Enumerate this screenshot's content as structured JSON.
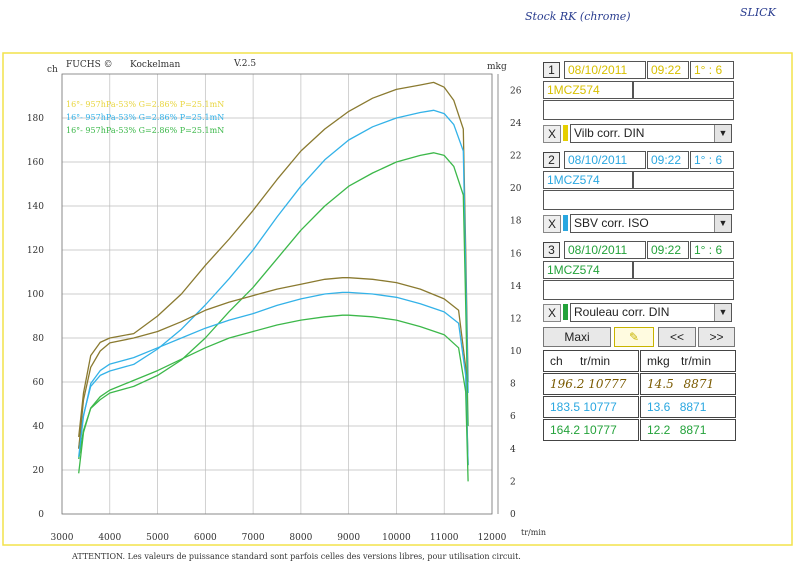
{
  "header": {
    "brand": "FUCHS ©",
    "author": "Kockelman",
    "version": "V.2.5",
    "left_unit": "ch",
    "right_unit": "mkg",
    "x_unit": "tr/min"
  },
  "handwritten": {
    "top_note": "Stock RK (chrome)",
    "top_right": "SLICK"
  },
  "footer_text": "ATTENTION. Les valeurs de puissance standard sont parfois celles des versions libres, pour utilisation circuit.",
  "legend_lines": [
    {
      "text": "16°- 957hPa-53% G=2.86% P=25.1mN",
      "color": "#e8d640"
    },
    {
      "text": "16°- 957hPa-53% G=2.86% P=25.1mN",
      "color": "#33b2e8"
    },
    {
      "text": "16°- 957hPa-53% G=2.86% P=25.1mN",
      "color": "#3cb84a"
    }
  ],
  "runs": [
    {
      "number": "1",
      "date": "08/10/2011",
      "time": "09:22",
      "ratio": "1° : 6",
      "plate": "1MCZ574",
      "correction": "Vilb corr. DIN",
      "close": "X",
      "color": "#e6cf00"
    },
    {
      "number": "2",
      "date": "08/10/2011",
      "time": "09:22",
      "ratio": "1° : 6",
      "plate": "1MCZ574",
      "correction": "SBV corr. ISO",
      "close": "X",
      "color": "#2aa7e0"
    },
    {
      "number": "3",
      "date": "08/10/2011",
      "time": "09:22",
      "ratio": "1° : 6",
      "plate": "1MCZ574",
      "correction": "Rouleau corr. DIN",
      "close": "X",
      "color": "#23a23a"
    }
  ],
  "controls": {
    "maxi": "Maxi",
    "prev": "<<",
    "next": ">>"
  },
  "results_table": {
    "headers": [
      "ch",
      "tr/min",
      "mkg",
      "tr/min"
    ],
    "rows": [
      {
        "ch": "196.2",
        "rpm1": "10777",
        "mkg": "14.5",
        "rpm2": "8871"
      },
      {
        "ch": "183.5",
        "rpm1": "10777",
        "mkg": "13.6",
        "rpm2": "8871"
      },
      {
        "ch": "164.2",
        "rpm1": "10777",
        "mkg": "12.2",
        "rpm2": "8871"
      }
    ]
  },
  "chart_data": {
    "type": "line",
    "title": "",
    "xlabel": "tr/min",
    "ylabel": "ch",
    "y2label": "mkg",
    "xlim": [
      3000,
      12000
    ],
    "ylim": [
      0,
      200
    ],
    "y2lim": [
      0,
      27
    ],
    "grid": true,
    "x_ticks": [
      3000,
      4000,
      5000,
      6000,
      7000,
      8000,
      9000,
      10000,
      11000,
      12000
    ],
    "y_ticks": [
      0,
      20,
      40,
      60,
      80,
      100,
      120,
      140,
      160,
      180
    ],
    "y2_ticks": [
      0,
      2,
      4,
      6,
      8,
      10,
      12,
      14,
      16,
      18,
      20,
      22,
      24,
      26
    ],
    "series": [
      {
        "name": "1",
        "kind": "power",
        "color": "#8a7a30",
        "x": [
          3350,
          3450,
          3600,
          3800,
          4000,
          4500,
          5000,
          5500,
          6000,
          6500,
          7000,
          7500,
          8000,
          8500,
          9000,
          9500,
          10000,
          10500,
          10777,
          11000,
          11200,
          11400,
          11450,
          11500
        ],
        "y": [
          35,
          55,
          72,
          78,
          80,
          82,
          90,
          100,
          113,
          125,
          138,
          152,
          165,
          175,
          183,
          189,
          193,
          195,
          196.2,
          194,
          188,
          175,
          120,
          60
        ]
      },
      {
        "name": "2",
        "kind": "power",
        "color": "#33b2e8",
        "x": [
          3350,
          3450,
          3600,
          3800,
          4000,
          4500,
          5000,
          5500,
          6000,
          6500,
          7000,
          7500,
          8000,
          8500,
          9000,
          9500,
          10000,
          10500,
          10777,
          11000,
          11200,
          11400,
          11450,
          11500
        ],
        "y": [
          30,
          45,
          58,
          63,
          65,
          68,
          75,
          84,
          95,
          107,
          120,
          135,
          149,
          161,
          170,
          176,
          180,
          182.5,
          183.5,
          182,
          177,
          165,
          110,
          55
        ]
      },
      {
        "name": "3",
        "kind": "power",
        "color": "#3cb84a",
        "x": [
          3350,
          3450,
          3600,
          3800,
          4000,
          4500,
          5000,
          5500,
          6000,
          6500,
          7000,
          7500,
          8000,
          8500,
          9000,
          9500,
          10000,
          10500,
          10777,
          11000,
          11200,
          11400,
          11450,
          11500
        ],
        "y": [
          25,
          38,
          48,
          52,
          55,
          58,
          63,
          70,
          80,
          92,
          103,
          116,
          129,
          140,
          149,
          155,
          160,
          163,
          164.2,
          163,
          158,
          145,
          95,
          40
        ]
      },
      {
        "name": "1",
        "kind": "torque",
        "color": "#8a7a30",
        "x": [
          3350,
          3450,
          3600,
          3800,
          4000,
          4500,
          5000,
          5500,
          6000,
          6500,
          7000,
          7500,
          8000,
          8500,
          8871,
          9000,
          9500,
          10000,
          10500,
          11000,
          11300,
          11450,
          11500
        ],
        "y": [
          4,
          7,
          9,
          10,
          10.5,
          10.8,
          11.2,
          11.8,
          12.5,
          13.0,
          13.4,
          13.8,
          14.1,
          14.4,
          14.5,
          14.5,
          14.4,
          14.2,
          13.8,
          13.2,
          12.5,
          9,
          3
        ]
      },
      {
        "name": "2",
        "kind": "torque",
        "color": "#33b2e8",
        "x": [
          3350,
          3450,
          3600,
          3800,
          4000,
          4500,
          5000,
          5500,
          6000,
          6500,
          7000,
          7500,
          8000,
          8500,
          8871,
          9000,
          9500,
          10000,
          10500,
          11000,
          11300,
          11450,
          11500
        ],
        "y": [
          3.5,
          6,
          8,
          8.8,
          9.2,
          9.6,
          10.2,
          10.8,
          11.4,
          11.9,
          12.3,
          12.8,
          13.2,
          13.5,
          13.6,
          13.6,
          13.5,
          13.3,
          12.9,
          12.4,
          11.7,
          8.5,
          3
        ]
      },
      {
        "name": "3",
        "kind": "torque",
        "color": "#3cb84a",
        "x": [
          3350,
          3450,
          3600,
          3800,
          4000,
          4500,
          5000,
          5500,
          6000,
          6500,
          7000,
          7500,
          8000,
          8500,
          8871,
          9000,
          9500,
          10000,
          10500,
          11000,
          11300,
          11450,
          11500
        ],
        "y": [
          2.5,
          5,
          6.5,
          7.2,
          7.6,
          8.2,
          8.8,
          9.5,
          10.2,
          10.8,
          11.2,
          11.6,
          11.9,
          12.1,
          12.2,
          12.2,
          12.1,
          11.9,
          11.5,
          11.0,
          10.2,
          7.5,
          2
        ]
      }
    ]
  }
}
